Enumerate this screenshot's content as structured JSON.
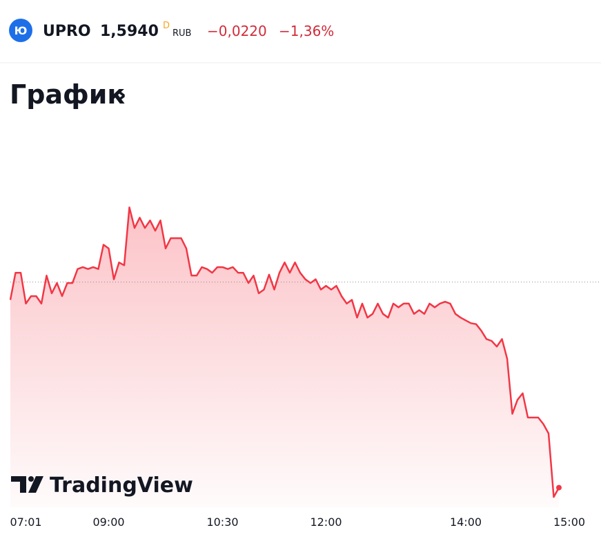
{
  "header": {
    "logo": "Ю",
    "ticker": "UPRO",
    "price": "1,5940",
    "price_flag": "D",
    "currency": "RUB",
    "change": "−0,0220",
    "change_percent": "−1,36%"
  },
  "section": {
    "title": "График",
    "arrow": "›"
  },
  "branding": "TradingView",
  "chart_data": {
    "type": "line",
    "color": "#f23645",
    "values": [
      1.6141,
      1.617,
      1.617,
      1.6137,
      1.6145,
      1.6145,
      1.6137,
      1.6167,
      1.6148,
      1.6159,
      1.6145,
      1.6159,
      1.6159,
      1.6174,
      1.6176,
      1.6174,
      1.6176,
      1.6174,
      1.62,
      1.6196,
      1.6163,
      1.6181,
      1.6178,
      1.624,
      1.6218,
      1.6229,
      1.6218,
      1.6226,
      1.6215,
      1.6226,
      1.6196,
      1.6207,
      1.6207,
      1.6207,
      1.6196,
      1.6167,
      1.6167,
      1.6176,
      1.6174,
      1.617,
      1.6176,
      1.6176,
      1.6174,
      1.6176,
      1.617,
      1.617,
      1.6159,
      1.6167,
      1.6148,
      1.6152,
      1.6168,
      1.6152,
      1.617,
      1.6181,
      1.617,
      1.6181,
      1.617,
      1.6163,
      1.6159,
      1.6163,
      1.6152,
      1.6156,
      1.6152,
      1.6156,
      1.6145,
      1.6137,
      1.6141,
      1.6122,
      1.6137,
      1.6122,
      1.6126,
      1.6137,
      1.6126,
      1.6122,
      1.6137,
      1.6133,
      1.6137,
      1.6137,
      1.6126,
      1.613,
      1.6126,
      1.6137,
      1.6133,
      1.6137,
      1.6139,
      1.6137,
      1.6126,
      1.6122,
      1.6119,
      1.6116,
      1.6115,
      1.6108,
      1.6099,
      1.6097,
      1.6091,
      1.6099,
      1.6078,
      1.6019,
      1.6034,
      1.6041,
      1.6015,
      1.6015,
      1.6015,
      1.6008,
      1.5998,
      1.593,
      1.594
    ],
    "xlim": [
      0,
      114
    ],
    "xticks": [
      {
        "value": 3,
        "label": "07:01"
      },
      {
        "value": 19,
        "label": "09:00"
      },
      {
        "value": 41,
        "label": "10:30"
      },
      {
        "value": 61,
        "label": "12:00"
      },
      {
        "value": 88,
        "label": "14:00"
      },
      {
        "value": 108,
        "label": "15:00"
      }
    ],
    "ylim": [
      1.5919,
      1.6329
    ],
    "reference_value": 1.616
  }
}
